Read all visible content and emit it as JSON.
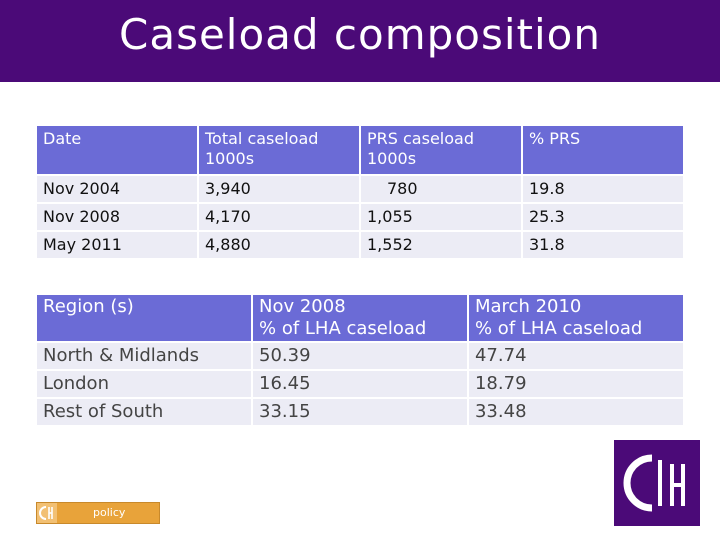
{
  "slide": {
    "title": "Caseload composition"
  },
  "table1": {
    "headers": [
      "Date",
      "Total caseload\n1000s",
      "PRS caseload\n1000s",
      "% PRS"
    ],
    "rows": [
      [
        "Nov 2004",
        "3,940",
        "780",
        "19.8"
      ],
      [
        "Nov 2008",
        "4,170",
        "1,055",
        "25.3"
      ],
      [
        "May 2011",
        "4,880",
        "1,552",
        "31.8"
      ]
    ]
  },
  "table2": {
    "headers": [
      "Region (s)",
      "Nov 2008\n% of LHA caseload",
      "March 2010\n% of LHA caseload"
    ],
    "rows": [
      [
        "North & Midlands",
        "50.39",
        "47.74"
      ],
      [
        "London",
        "16.45",
        "18.79"
      ],
      [
        "Rest of South",
        "33.15",
        "33.48"
      ]
    ]
  },
  "footer": {
    "policy_label": "policy"
  },
  "colors": {
    "title_bar": "#4b0a78",
    "header_fill": "#6b6bd6",
    "row_fill": "#ececf5",
    "policy_logo": "#e8a33a"
  }
}
